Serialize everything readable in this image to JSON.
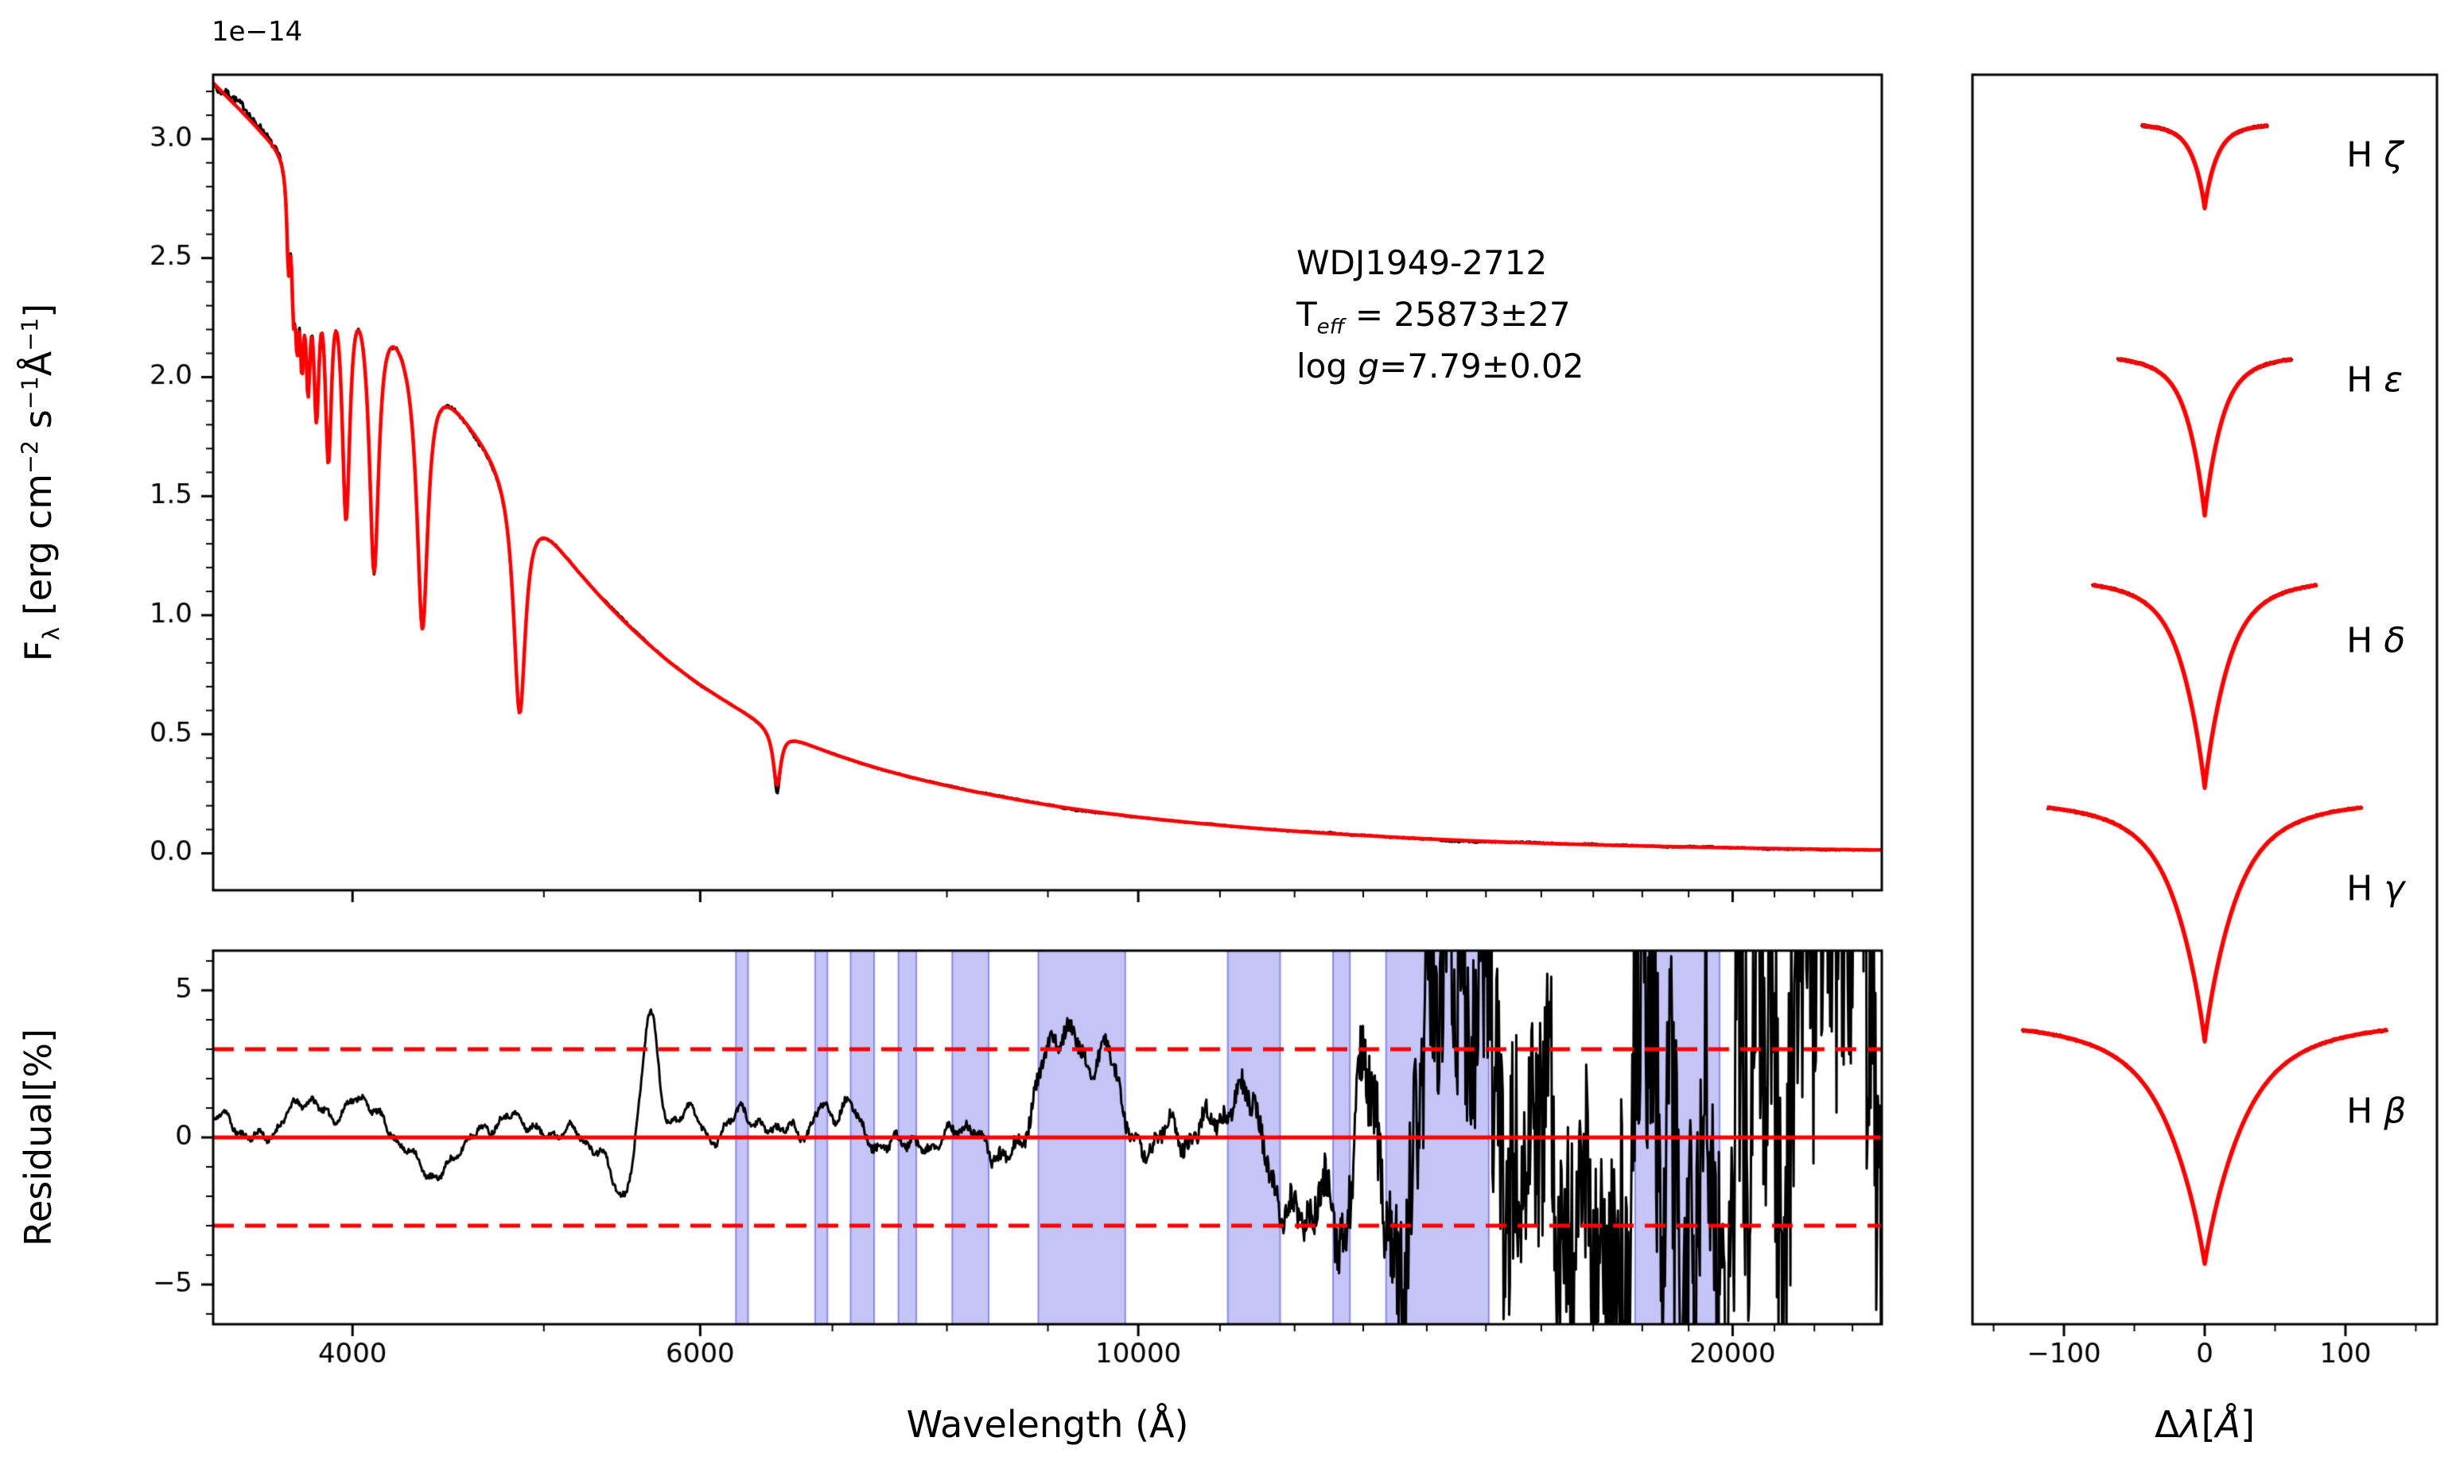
{
  "figure": {
    "background": "#ffffff",
    "offset_text": "1e−14",
    "xlabel": "Wavelength (Å)",
    "residual_ylabel": "Residual[%]",
    "main_ylabel": "Fλ [erg cm−2 s−1 Å−1]",
    "main_ylabel_parts": [
      {
        "t": "F"
      },
      {
        "t": "λ",
        "sub": true
      },
      {
        "t": " [erg cm"
      },
      {
        "t": "−2",
        "sup": true
      },
      {
        "t": " s"
      },
      {
        "t": "−1",
        "sup": true
      },
      {
        "t": "Å"
      },
      {
        "t": "−1",
        "sup": true
      },
      {
        "t": "]"
      }
    ],
    "profiles_xlabel": "Δλ[Å]",
    "profiles_xlabel_parts": [
      {
        "t": "Δ"
      },
      {
        "t": "λ",
        "i": true
      },
      {
        "t": "["
      },
      {
        "t": "Å",
        "i": true
      },
      {
        "t": "]"
      }
    ],
    "annotation": {
      "line1": "WDJ1949-2712",
      "line2": "Teff = 25873±27",
      "line2_parts": [
        {
          "t": "T"
        },
        {
          "t": "eff",
          "sub": true,
          "i": true
        },
        {
          "t": " = 25873±27"
        }
      ],
      "line3": "log g=7.79±0.02",
      "line3_parts": [
        {
          "t": "log "
        },
        {
          "t": "g",
          "i": true
        },
        {
          "t": "=7.79±0.02"
        }
      ]
    }
  },
  "chart_data": [
    {
      "type": "line",
      "panel": "spectrum",
      "title": "",
      "xscale": "log",
      "xlim": [
        3400,
        23800
      ],
      "ylim": [
        -0.155,
        3.27
      ],
      "ylabel": "Fλ [erg cm−2 s−1 Å−1]",
      "y_offset_factor": "1e−14",
      "annotation": [
        "WDJ1949-2712",
        "Teff = 25873±27",
        "log g=7.79±0.02"
      ],
      "series": [
        {
          "name": "observed spectrum",
          "color": "#000000"
        },
        {
          "name": "model fit",
          "color": "#ff0000"
        }
      ],
      "yticks": [
        {
          "v": 0.0,
          "label": "0.0"
        },
        {
          "v": 0.5,
          "label": "0.5"
        },
        {
          "v": 1.0,
          "label": "1.0"
        },
        {
          "v": 1.5,
          "label": "1.5"
        },
        {
          "v": 2.0,
          "label": "2.0"
        },
        {
          "v": 2.5,
          "label": "2.5"
        },
        {
          "v": 3.0,
          "label": "3.0"
        }
      ],
      "continuum": [
        [
          3400,
          3.25
        ],
        [
          3600,
          3.06
        ],
        [
          3800,
          2.92
        ],
        [
          4000,
          2.58
        ],
        [
          4200,
          2.3
        ],
        [
          4400,
          2.05
        ],
        [
          4600,
          1.82
        ],
        [
          4800,
          1.63
        ],
        [
          5000,
          1.4
        ],
        [
          5200,
          1.2
        ],
        [
          5400,
          1.04
        ],
        [
          5600,
          0.91
        ],
        [
          5800,
          0.8
        ],
        [
          6000,
          0.71
        ],
        [
          6200,
          0.635
        ],
        [
          6400,
          0.57
        ],
        [
          6563,
          0.52
        ],
        [
          6800,
          0.462
        ],
        [
          7000,
          0.42
        ],
        [
          7400,
          0.355
        ],
        [
          7800,
          0.305
        ],
        [
          8200,
          0.265
        ],
        [
          8600,
          0.232
        ],
        [
          9000,
          0.203
        ],
        [
          9500,
          0.175
        ],
        [
          10000,
          0.152
        ],
        [
          11000,
          0.118
        ],
        [
          12000,
          0.093
        ],
        [
          13000,
          0.075
        ],
        [
          14000,
          0.061
        ],
        [
          15000,
          0.0505
        ],
        [
          16000,
          0.0425
        ],
        [
          17000,
          0.036
        ],
        [
          18000,
          0.031
        ],
        [
          19000,
          0.0267
        ],
        [
          20000,
          0.0232
        ],
        [
          21500,
          0.0188
        ],
        [
          23800,
          0.0142
        ]
      ],
      "lines": [
        {
          "c": 3712,
          "d": 0.13,
          "g": 8
        },
        {
          "c": 3734,
          "d": 0.16,
          "g": 9
        },
        {
          "c": 3750,
          "d": 0.19,
          "g": 10
        },
        {
          "c": 3771,
          "d": 0.22,
          "g": 11
        },
        {
          "c": 3798,
          "d": 0.26,
          "g": 13
        },
        {
          "c": 3835,
          "d": 0.3,
          "g": 16
        },
        {
          "c": 3889,
          "d": 0.36,
          "g": 19
        },
        {
          "c": 3970,
          "d": 0.44,
          "g": 23
        },
        {
          "c": 4102,
          "d": 0.5,
          "g": 28
        },
        {
          "c": 4340,
          "d": 0.55,
          "g": 34
        },
        {
          "c": 4861,
          "d": 0.62,
          "g": 42
        },
        {
          "c": 6563,
          "d": 0.45,
          "g": 36
        }
      ],
      "noise_envelope": [
        [
          3400,
          0.007
        ],
        [
          5000,
          0.004
        ],
        [
          7000,
          0.005
        ],
        [
          8500,
          0.012
        ],
        [
          9300,
          0.022
        ],
        [
          10000,
          0.016
        ],
        [
          11000,
          0.02
        ],
        [
          12000,
          0.03
        ],
        [
          13000,
          0.05
        ],
        [
          14000,
          0.07
        ],
        [
          16000,
          0.09
        ],
        [
          18000,
          0.12
        ],
        [
          23800,
          0.18
        ]
      ],
      "black_core_extra": 0.12,
      "noise_seed": 7
    },
    {
      "type": "line",
      "panel": "residual",
      "xscale": "log",
      "xlim": [
        3400,
        23800
      ],
      "ylim": [
        -6.35,
        6.35
      ],
      "ylabel": "Residual[%]",
      "xlabel": "Wavelength (Å)",
      "line_color": "#000000",
      "zero_line_color": "#ff0000",
      "dashed_levels": [
        3,
        -3
      ],
      "dash": [
        26,
        14
      ],
      "band_fill": "rgba(70,70,230,0.32)",
      "band_edge": "rgba(70,70,230,0.55)",
      "masked_bands": [
        [
          6255,
          6345
        ],
        [
          6860,
          6960
        ],
        [
          7150,
          7350
        ],
        [
          7560,
          7720
        ],
        [
          8050,
          8400
        ],
        [
          8900,
          9850
        ],
        [
          11100,
          11800
        ],
        [
          12550,
          12800
        ],
        [
          13350,
          15050
        ],
        [
          17850,
          19700
        ]
      ],
      "yticks": [
        {
          "v": -5,
          "label": "−5"
        },
        {
          "v": 0,
          "label": "0"
        },
        {
          "v": 5,
          "label": "5"
        }
      ],
      "yticks_minor": [
        -6,
        -4,
        -3,
        -2,
        -1,
        1,
        2,
        3,
        4,
        6
      ],
      "xticks": [
        {
          "v": 4000,
          "label": "4000"
        },
        {
          "v": 6000,
          "label": "6000"
        },
        {
          "v": 10000,
          "label": "10000"
        },
        {
          "v": 20000,
          "label": "20000"
        }
      ],
      "xticks_minor": [
        5000,
        7000,
        8000,
        9000,
        11000,
        12000,
        13000,
        14000,
        15000,
        16000,
        17000,
        18000,
        19000,
        21000,
        22000,
        23000
      ],
      "noise_envelope": [
        [
          3400,
          0.45
        ],
        [
          5000,
          0.4
        ],
        [
          6000,
          0.45
        ],
        [
          7000,
          0.5
        ],
        [
          8000,
          0.6
        ],
        [
          9000,
          0.8
        ],
        [
          10000,
          0.7
        ],
        [
          11000,
          0.8
        ],
        [
          12000,
          1.1
        ],
        [
          13000,
          1.8
        ],
        [
          13600,
          3.0
        ],
        [
          14200,
          5.0
        ],
        [
          16000,
          4.5
        ],
        [
          17000,
          5.0
        ],
        [
          18000,
          7
        ],
        [
          19500,
          8
        ],
        [
          21000,
          9
        ],
        [
          23800,
          10
        ]
      ],
      "jitter_envelope": [
        [
          3400,
          0.1
        ],
        [
          6000,
          0.1
        ],
        [
          8000,
          0.15
        ],
        [
          9000,
          0.3
        ],
        [
          10000,
          0.25
        ],
        [
          11000,
          0.35
        ],
        [
          12000,
          0.5
        ],
        [
          13000,
          1.2
        ],
        [
          14000,
          3.5
        ],
        [
          15000,
          4.5
        ],
        [
          16000,
          4.0
        ],
        [
          17000,
          4.5
        ],
        [
          18000,
          6
        ],
        [
          20000,
          7
        ],
        [
          23800,
          8
        ]
      ],
      "features": [
        {
          "c": 3430,
          "a": 1.2,
          "s": 60
        },
        {
          "c": 3800,
          "a": 1.4,
          "s": 110
        },
        {
          "c": 4060,
          "a": 0.9,
          "s": 80
        },
        {
          "c": 4420,
          "a": -1.1,
          "s": 130
        },
        {
          "c": 4800,
          "a": 0.5,
          "s": 110
        },
        {
          "c": 5480,
          "a": -1.5,
          "s": 55
        },
        {
          "c": 5660,
          "a": 4.9,
          "s": 50
        },
        {
          "c": 5920,
          "a": 0.9,
          "s": 70
        },
        {
          "c": 6300,
          "a": 0.7,
          "s": 50
        },
        {
          "c": 6900,
          "a": 1.3,
          "s": 70
        },
        {
          "c": 7120,
          "a": 0.9,
          "s": 70
        },
        {
          "c": 7430,
          "a": -0.8,
          "s": 70
        },
        {
          "c": 8230,
          "a": 0.9,
          "s": 90
        },
        {
          "c": 8920,
          "a": 1.9,
          "s": 130
        },
        {
          "c": 9230,
          "a": 2.7,
          "s": 150
        },
        {
          "c": 9640,
          "a": 2.3,
          "s": 160
        },
        {
          "c": 10050,
          "a": -0.9,
          "s": 160
        },
        {
          "c": 10850,
          "a": 1.1,
          "s": 160
        },
        {
          "c": 11330,
          "a": 2.1,
          "s": 130
        },
        {
          "c": 11740,
          "a": -2.3,
          "s": 160
        },
        {
          "c": 12130,
          "a": -1.6,
          "s": 160
        },
        {
          "c": 12640,
          "a": -2.9,
          "s": 160
        },
        {
          "c": 13040,
          "a": 3.2,
          "s": 160
        },
        {
          "c": 13430,
          "a": -3.6,
          "s": 160
        }
      ],
      "noise_seed": 11
    },
    {
      "type": "line",
      "panel": "balmer-profiles",
      "xlim": [
        -165,
        165
      ],
      "xlabel": "Δλ[Å]",
      "xticks": [
        {
          "v": -100,
          "label": "−100"
        },
        {
          "v": 0,
          "label": "0"
        },
        {
          "v": 100,
          "label": "100"
        }
      ],
      "xticks_minor": [
        -150,
        -50,
        50,
        150
      ],
      "series": [
        {
          "name": "observed",
          "color": "#000000"
        },
        {
          "name": "model",
          "color": "#ff0000"
        }
      ],
      "label_x_frac": 0.805,
      "noise_seed": 23,
      "profiles": [
        {
          "label": "H ζ",
          "label_parts": [
            {
              "t": "H "
            },
            {
              "t": "ζ",
              "i": true
            }
          ],
          "base": 0.0407,
          "depth": 0.066,
          "span": 45,
          "lor_gamma": 14,
          "lor_weight": 0.4,
          "core_w": 5,
          "label_y": 0.0643
        },
        {
          "label": "H ε",
          "label_parts": [
            {
              "t": "H "
            },
            {
              "t": "ε",
              "i": true
            }
          ],
          "base": 0.2277,
          "depth": 0.125,
          "span": 62,
          "lor_gamma": 18,
          "lor_weight": 0.45,
          "core_w": 7,
          "label_y": 0.2443
        },
        {
          "label": "H δ",
          "label_parts": [
            {
              "t": "H "
            },
            {
              "t": "δ",
              "i": true
            }
          ],
          "base": 0.4084,
          "depth": 0.162,
          "span": 80,
          "lor_gamma": 24,
          "lor_weight": 0.48,
          "core_w": 9,
          "label_y": 0.4529
        },
        {
          "label": "H γ",
          "label_parts": [
            {
              "t": "H "
            },
            {
              "t": "γ",
              "i": true
            }
          ],
          "base": 0.5865,
          "depth": 0.187,
          "span": 112,
          "lor_gamma": 32,
          "lor_weight": 0.5,
          "core_w": 11,
          "label_y": 0.6514
        },
        {
          "label": "H β",
          "label_parts": [
            {
              "t": "H "
            },
            {
              "t": "β",
              "i": true
            }
          ],
          "base": 0.7646,
          "depth": 0.187,
          "span": 130,
          "lor_gamma": 40,
          "lor_weight": 0.52,
          "core_w": 13,
          "label_y": 0.8295
        }
      ]
    }
  ]
}
